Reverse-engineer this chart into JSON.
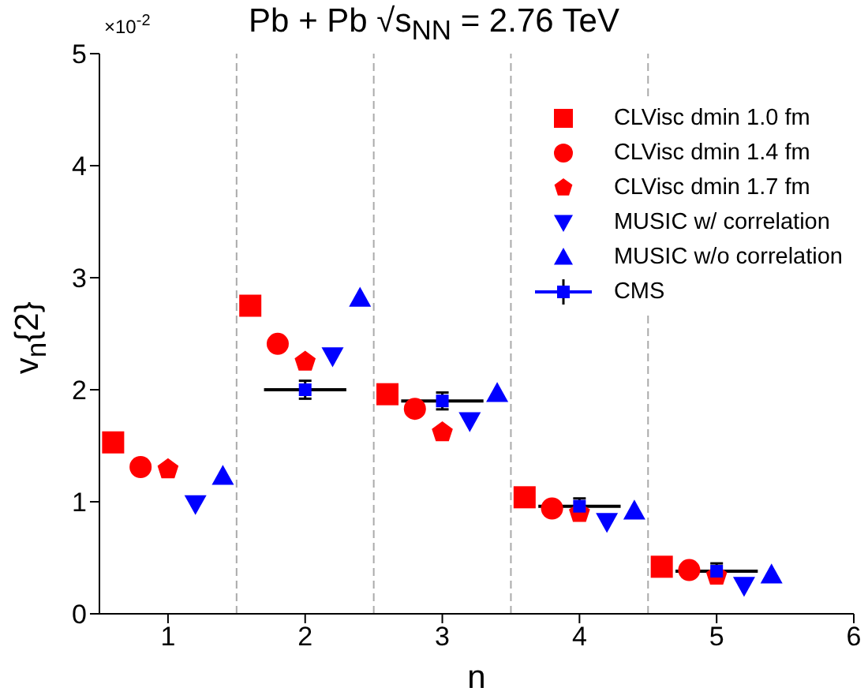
{
  "chart_data": {
    "type": "scatter",
    "title": "Pb + Pb √s$_{NN}$ = 2.76 TeV",
    "xlabel": "n",
    "ylabel": "v$_{n}${2}",
    "annotations": [
      "×10$^{-2}$"
    ],
    "xlim": [
      0.5,
      6
    ],
    "xticks": [
      1,
      2,
      3,
      4,
      5,
      6
    ],
    "ylim": [
      0,
      5
    ],
    "yticks": [
      0,
      1,
      2,
      3,
      4,
      5
    ],
    "grid": false,
    "legend": "top right",
    "ref_lines": [
      {
        "axis": "x",
        "value": 1.5,
        "color": "#aaaaaa",
        "line_style": "dashed"
      },
      {
        "axis": "x",
        "value": 2.5,
        "color": "#aaaaaa",
        "line_style": "dashed"
      },
      {
        "axis": "x",
        "value": 3.5,
        "color": "#aaaaaa",
        "line_style": "dashed"
      },
      {
        "axis": "x",
        "value": 4.5,
        "color": "#aaaaaa",
        "line_style": "dashed"
      }
    ],
    "series": [
      {
        "name": "CLVisc dmin 1.0 fm",
        "color": "#ff0000",
        "marker": "square",
        "x": [
          0.6,
          1.6,
          2.6,
          3.6,
          4.6
        ],
        "values": [
          1.53,
          2.75,
          1.96,
          1.04,
          0.42
        ]
      },
      {
        "name": "CLVisc dmin 1.4 fm",
        "color": "#ff0000",
        "marker": "circle",
        "x": [
          0.8,
          1.8,
          2.8,
          3.8,
          4.8
        ],
        "values": [
          1.31,
          2.41,
          1.83,
          0.94,
          0.39
        ]
      },
      {
        "name": "CLVisc dmin 1.7 fm",
        "color": "#ff0000",
        "x": [
          1,
          2,
          3,
          4,
          5
        ],
        "values": [
          1.29,
          2.25,
          1.62,
          0.9,
          0.34
        ]
      },
      {
        "name": "MUSIC w/ correlation",
        "color": "#0000ff",
        "marker": "triangle-down",
        "x": [
          1.2,
          2.2,
          3.2,
          4.2,
          5.2
        ],
        "values": [
          0.98,
          2.3,
          1.72,
          0.82,
          0.25
        ]
      },
      {
        "name": "MUSIC w/o correlation",
        "color": "#0000ff",
        "marker": "triangle",
        "x": [
          1.4,
          2.4,
          3.4,
          4.4,
          5.4
        ],
        "values": [
          1.23,
          2.82,
          1.97,
          0.92,
          0.35
        ]
      },
      {
        "name": "CMS",
        "color": "#0000ff",
        "marker": "square",
        "x": [
          2,
          3,
          4,
          5
        ],
        "values": [
          2.0,
          1.9,
          0.96,
          0.38
        ],
        "errors": [
          0.08,
          0.075,
          0.07,
          0.07
        ],
        "xerrors": [
          0.3,
          0.3,
          0.3,
          0.3
        ]
      }
    ]
  }
}
